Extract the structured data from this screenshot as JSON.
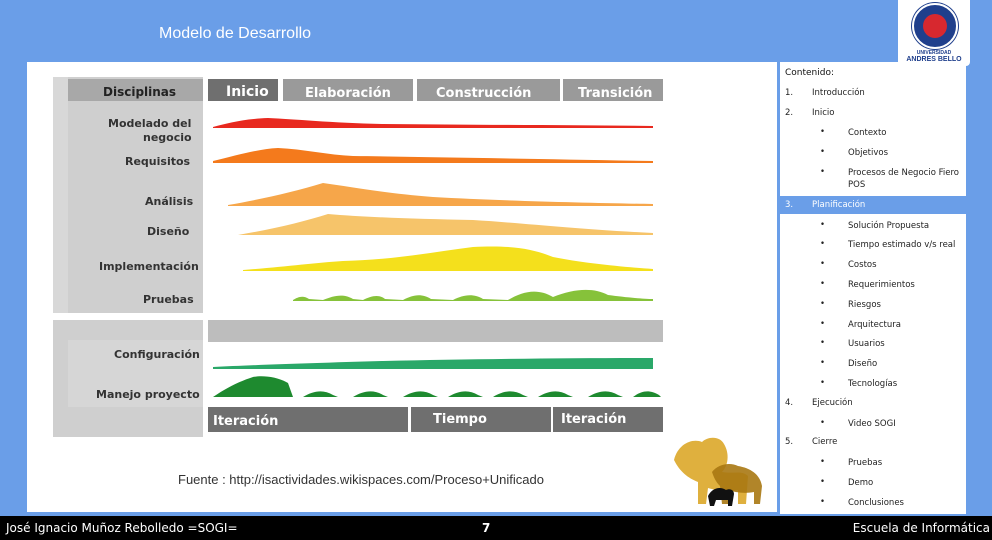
{
  "slide": {
    "title": "Modelo de Desarrollo"
  },
  "logo": {
    "line1": "UNIVERSIDAD",
    "line2": "ANDRES BELLO"
  },
  "diagram": {
    "header_left": "Disciplinas",
    "phases": [
      "Inicio",
      "Elaboración",
      "Construcción",
      "Transición"
    ],
    "disciplines": [
      "Modelado del",
      "negocio",
      "Requisitos",
      "Análisis",
      "Diseño",
      "Implementación",
      "Pruebas"
    ],
    "support": [
      "Configuración",
      "Manejo proyecto"
    ],
    "footer_labels": [
      "Iteración",
      "Tiempo",
      "Iteración"
    ],
    "colors": {
      "red": "#e8291f",
      "orange": "#f47a1c",
      "lightorange": "#f6a64a",
      "amber": "#f6c46a",
      "yellow": "#f4e01c",
      "yellowgreen": "#c8d31f",
      "lime": "#86c23a",
      "green": "#2aa869",
      "darkgreen": "#1e8a2f",
      "gray": "#9a9a9a",
      "darkgray": "#6f6f6f"
    }
  },
  "source": "Fuente : http://isactividades.wikispaces.com/Proceso+Unificado",
  "toc": {
    "heading": "Contenido:",
    "items": [
      {
        "num": "1.",
        "label": "Introducción"
      },
      {
        "num": "2.",
        "label": "Inicio"
      },
      {
        "num": "3.",
        "label": "Planificación"
      },
      {
        "num": "4.",
        "label": "Ejecución"
      },
      {
        "num": "5.",
        "label": "Cierre"
      }
    ],
    "inicio_sub": [
      "Contexto",
      "Objetivos",
      "Procesos de Negocio Fiero POS"
    ],
    "planificacion_sub": [
      "Solución Propuesta",
      "Tiempo estimado v/s real",
      "Costos",
      "Requerimientos",
      "Riesgos",
      "Arquitectura",
      "Usuarios",
      "Diseño",
      "Tecnologías"
    ],
    "ejecucion_sub": [
      "Video SOGI"
    ],
    "cierre_sub": [
      "Pruebas",
      "Demo",
      "Conclusiones"
    ],
    "bullet": "•"
  },
  "footer": {
    "author": "José Ignacio Muñoz Rebolledo =SOGI=",
    "page": "7",
    "school": "Escuela de Informática"
  }
}
